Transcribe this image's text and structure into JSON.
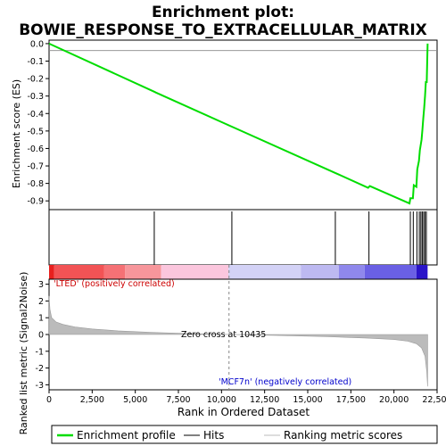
{
  "chart_data": {
    "type": "line",
    "title_line1": "Enrichment plot:",
    "title_line2": "BOWIE_RESPONSE_TO_EXTRACELLULAR_MATRIX",
    "es_panel": {
      "ylabel": "Enrichment score (ES)",
      "ylim": [
        -0.95,
        0.02
      ],
      "yticks": [
        0.0,
        -0.1,
        -0.2,
        -0.3,
        -0.4,
        -0.5,
        -0.6,
        -0.7,
        -0.8,
        -0.9
      ],
      "ytick_labels": [
        "0.0",
        "-0.1",
        "-0.2",
        "-0.3",
        "-0.4",
        "-0.5",
        "-0.6",
        "-0.7",
        "-0.8",
        "-0.9"
      ],
      "line_color": "#00dd00",
      "series": {
        "name": "Enrichment profile",
        "x": [
          0,
          6100,
          6200,
          10600,
          10700,
          16600,
          16700,
          18500,
          18600,
          20900,
          20950,
          21100,
          21150,
          21300,
          21350,
          21450,
          21500,
          21600,
          21650,
          21700,
          21750,
          21800,
          21850,
          21900,
          21950
        ],
        "y": [
          0.0,
          -0.275,
          -0.28,
          -0.475,
          -0.48,
          -0.74,
          -0.745,
          -0.825,
          -0.815,
          -0.915,
          -0.885,
          -0.885,
          -0.81,
          -0.82,
          -0.72,
          -0.67,
          -0.61,
          -0.55,
          -0.49,
          -0.43,
          -0.37,
          -0.3,
          -0.22,
          -0.22,
          0.0
        ]
      }
    },
    "hits": {
      "positions": [
        6100,
        10600,
        16600,
        18550,
        20950,
        21120,
        21330,
        21470,
        21560,
        21640,
        21720,
        21800,
        21880
      ]
    },
    "metric_panel": {
      "ylabel": "Ranked list metric (Signal2Noise)",
      "ylim": [
        -3.3,
        3.3
      ],
      "yticks": [
        3,
        2,
        1,
        0,
        -1,
        -2,
        -3
      ],
      "ytick_labels": [
        "3",
        "2",
        "1",
        "0",
        "-1",
        "-2",
        "-3"
      ],
      "profile": {
        "x": [
          0,
          50,
          150,
          400,
          800,
          1500,
          2500,
          4000,
          6000,
          8000,
          10435,
          13000,
          16000,
          18500,
          20000,
          20800,
          21300,
          21600,
          21800,
          21900,
          21950
        ],
        "y": [
          2.3,
          1.5,
          1.0,
          0.75,
          0.6,
          0.45,
          0.33,
          0.22,
          0.12,
          0.06,
          0.0,
          -0.05,
          -0.12,
          -0.22,
          -0.3,
          -0.4,
          -0.55,
          -0.8,
          -1.3,
          -2.2,
          -3.1
        ]
      },
      "zero_cross_label": "Zero cross at 10435",
      "zero_cross": 10435,
      "pos_label": "'LTED' (positively correlated)",
      "neg_label": "'MCF7n' (negatively correlated)"
    },
    "xaxis": {
      "label": "Rank in Ordered Dataset",
      "xlim": [
        0,
        22500
      ],
      "ticks": [
        0,
        2500,
        5000,
        7500,
        10000,
        12500,
        15000,
        17500,
        20000,
        22500
      ],
      "tick_labels": [
        "0",
        "2,500",
        "5,000",
        "7,500",
        "10,000",
        "12,500",
        "15,000",
        "17,500",
        "20,000",
        "22,500"
      ],
      "max_rank": 21950
    },
    "heat_bar": {
      "segments": [
        {
          "end": 300,
          "color": "#e8201e"
        },
        {
          "end": 3200,
          "color": "#f25355"
        },
        {
          "end": 4400,
          "color": "#f57175"
        },
        {
          "end": 6500,
          "color": "#f7969b"
        },
        {
          "end": 10400,
          "color": "#fbc6dd"
        },
        {
          "end": 14600,
          "color": "#d3d2f6"
        },
        {
          "end": 16800,
          "color": "#bdb9f1"
        },
        {
          "end": 18300,
          "color": "#8f88ec"
        },
        {
          "end": 21300,
          "color": "#6a60e4"
        },
        {
          "end": 21950,
          "color": "#2a14c8"
        }
      ]
    },
    "legend": [
      {
        "label": "Enrichment profile",
        "color": "#00dd00"
      },
      {
        "label": "Hits",
        "color": "#000000"
      },
      {
        "label": "Ranking metric scores",
        "color": "#bbbbbb"
      }
    ]
  }
}
